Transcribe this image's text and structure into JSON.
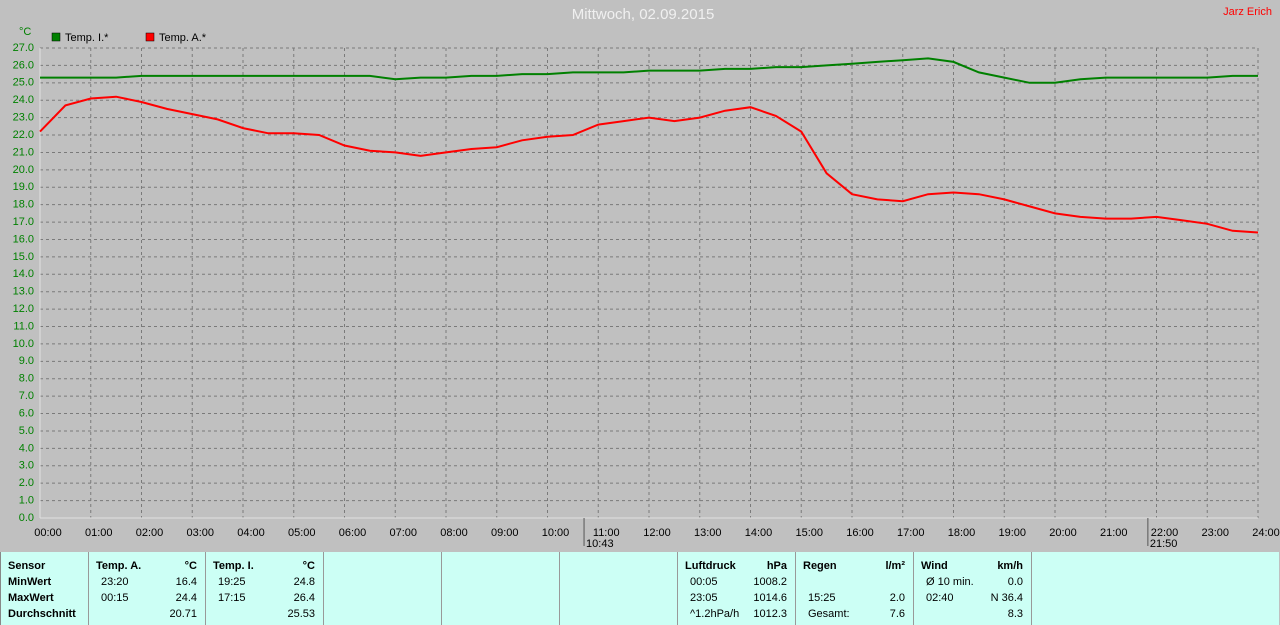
{
  "chart_data": {
    "type": "line",
    "title": "Mittwoch, 02.09.2015",
    "author": "Jarz Erich",
    "y_label": "°C",
    "x": [
      0,
      0.5,
      1,
      1.5,
      2,
      2.5,
      3,
      3.5,
      4,
      4.5,
      5,
      5.5,
      6,
      6.5,
      7,
      7.5,
      8,
      8.5,
      9,
      9.5,
      10,
      10.5,
      11,
      11.5,
      12,
      12.5,
      13,
      13.5,
      14,
      14.5,
      15,
      15.5,
      16,
      16.5,
      17,
      17.5,
      18,
      18.5,
      19,
      19.5,
      20,
      20.5,
      21,
      21.5,
      22,
      22.5,
      23,
      23.5,
      24
    ],
    "series": [
      {
        "name": "Temp. I.*",
        "color": "#008000",
        "values": [
          25.3,
          25.3,
          25.3,
          25.3,
          25.4,
          25.4,
          25.4,
          25.4,
          25.4,
          25.4,
          25.4,
          25.4,
          25.4,
          25.4,
          25.2,
          25.3,
          25.3,
          25.4,
          25.4,
          25.5,
          25.5,
          25.6,
          25.6,
          25.6,
          25.7,
          25.7,
          25.7,
          25.8,
          25.8,
          25.9,
          25.9,
          26.0,
          26.1,
          26.2,
          26.3,
          26.4,
          26.2,
          25.6,
          25.3,
          25.0,
          25.0,
          25.2,
          25.3,
          25.3,
          25.3,
          25.3,
          25.3,
          25.4,
          25.4
        ]
      },
      {
        "name": "Temp. A.*",
        "color": "#ff0000",
        "values": [
          22.2,
          23.7,
          24.1,
          24.2,
          23.9,
          23.5,
          23.2,
          22.9,
          22.4,
          22.1,
          22.1,
          22.0,
          21.4,
          21.1,
          21.0,
          20.8,
          21.0,
          21.2,
          21.3,
          21.7,
          21.9,
          22.0,
          22.6,
          22.8,
          23.0,
          22.8,
          23.0,
          23.4,
          23.6,
          23.1,
          22.2,
          19.8,
          18.6,
          18.3,
          18.2,
          18.6,
          18.7,
          18.6,
          18.3,
          17.9,
          17.5,
          17.3,
          17.2,
          17.2,
          17.3,
          17.1,
          16.9,
          16.5,
          16.4
        ]
      }
    ],
    "events": [
      {
        "x": 10.72,
        "label": "10:43"
      },
      {
        "x": 21.83,
        "label": "21:50"
      }
    ],
    "xlim": [
      0,
      24
    ],
    "xticks": [
      {
        "value": 0,
        "label": "00:00"
      },
      {
        "value": 1,
        "label": "01:00"
      },
      {
        "value": 2,
        "label": "02:00"
      },
      {
        "value": 3,
        "label": "03:00"
      },
      {
        "value": 4,
        "label": "04:00"
      },
      {
        "value": 5,
        "label": "05:00"
      },
      {
        "value": 6,
        "label": "06:00"
      },
      {
        "value": 7,
        "label": "07:00"
      },
      {
        "value": 8,
        "label": "08:00"
      },
      {
        "value": 9,
        "label": "09:00"
      },
      {
        "value": 10,
        "label": "10:00"
      },
      {
        "value": 11,
        "label": "11:00"
      },
      {
        "value": 12,
        "label": "12:00"
      },
      {
        "value": 13,
        "label": "13:00"
      },
      {
        "value": 14,
        "label": "14:00"
      },
      {
        "value": 15,
        "label": "15:00"
      },
      {
        "value": 16,
        "label": "16:00"
      },
      {
        "value": 17,
        "label": "17:00"
      },
      {
        "value": 18,
        "label": "18:00"
      },
      {
        "value": 19,
        "label": "19:00"
      },
      {
        "value": 20,
        "label": "20:00"
      },
      {
        "value": 21,
        "label": "21:00"
      },
      {
        "value": 22,
        "label": "22:00"
      },
      {
        "value": 23,
        "label": "23:00"
      },
      {
        "value": 24,
        "label": "24:00"
      }
    ],
    "ylim": [
      0,
      27
    ],
    "yticks": [
      {
        "value": 0,
        "label": "0.0"
      },
      {
        "value": 1,
        "label": "1.0"
      },
      {
        "value": 2,
        "label": "2.0"
      },
      {
        "value": 3,
        "label": "3.0"
      },
      {
        "value": 4,
        "label": "4.0"
      },
      {
        "value": 5,
        "label": "5.0"
      },
      {
        "value": 6,
        "label": "6.0"
      },
      {
        "value": 7,
        "label": "7.0"
      },
      {
        "value": 8,
        "label": "8.0"
      },
      {
        "value": 9,
        "label": "9.0"
      },
      {
        "value": 10,
        "label": "10.0"
      },
      {
        "value": 11,
        "label": "11.0"
      },
      {
        "value": 12,
        "label": "12.0"
      },
      {
        "value": 13,
        "label": "13.0"
      },
      {
        "value": 14,
        "label": "14.0"
      },
      {
        "value": 15,
        "label": "15.0"
      },
      {
        "value": 16,
        "label": "16.0"
      },
      {
        "value": 17,
        "label": "17.0"
      },
      {
        "value": 18,
        "label": "18.0"
      },
      {
        "value": 19,
        "label": "19.0"
      },
      {
        "value": 20,
        "label": "20.0"
      },
      {
        "value": 21,
        "label": "21.0"
      },
      {
        "value": 22,
        "label": "22.0"
      },
      {
        "value": 23,
        "label": "23.0"
      },
      {
        "value": 24,
        "label": "24.0"
      },
      {
        "value": 25,
        "label": "25.0"
      },
      {
        "value": 26,
        "label": "26.0"
      },
      {
        "value": 27,
        "label": "27.0"
      }
    ],
    "grid": true
  },
  "table": {
    "panels": [
      {
        "rows": [
          "Sensor",
          "MinWert",
          "MaxWert",
          "Durchschnitt"
        ]
      },
      {
        "header": [
          "Temp. A.",
          "°C"
        ],
        "rows": [
          [
            "23:20",
            "16.4"
          ],
          [
            "00:15",
            "24.4"
          ],
          [
            null,
            "20.71"
          ]
        ]
      },
      {
        "header": [
          "Temp. I.",
          "°C"
        ],
        "rows": [
          [
            "19:25",
            "24.8"
          ],
          [
            "17:15",
            "26.4"
          ],
          [
            null,
            "25.53"
          ]
        ]
      },
      {
        "header": [
          "Luftdruck",
          "hPa"
        ],
        "rows": [
          [
            "00:05",
            "1008.2"
          ],
          [
            "23:05",
            "1014.6"
          ],
          [
            "^1.2hPa/h",
            "1012.3"
          ]
        ]
      },
      {
        "header": [
          "Regen",
          "l/m²"
        ],
        "rows": [
          [
            null,
            null
          ],
          [
            "15:25",
            "2.0"
          ],
          [
            "Gesamt:",
            "7.6"
          ]
        ]
      },
      {
        "header": [
          "Wind",
          "km/h"
        ],
        "rows": [
          [
            "Ø 10 min.",
            "0.0"
          ],
          [
            "02:40",
            "N 36.4"
          ],
          [
            null,
            "8.3"
          ]
        ]
      }
    ]
  }
}
